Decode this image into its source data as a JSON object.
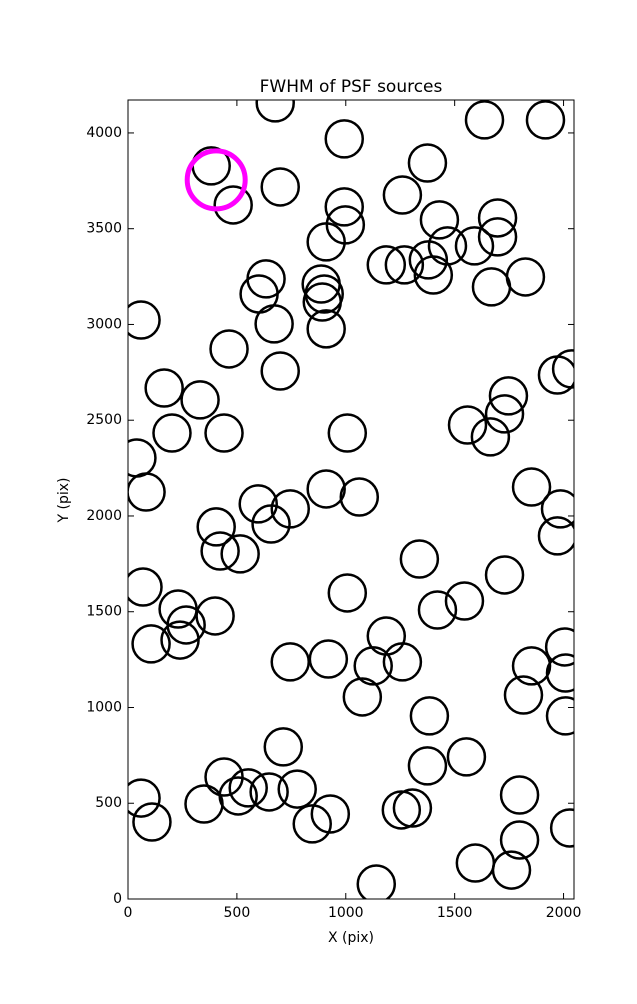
{
  "chart_data": {
    "type": "scatter",
    "title": "FWHM of PSF sources",
    "x_label": "X (pix)",
    "y_label": "Y (pix)",
    "xlim": [
      0,
      2048
    ],
    "ylim": [
      0,
      4172
    ],
    "xticks": [
      0,
      500,
      1000,
      1500,
      2000
    ],
    "yticks": [
      0,
      500,
      1000,
      1500,
      2000,
      2500,
      3000,
      3500,
      4000
    ],
    "grid": false,
    "series": [
      {
        "color": "#000000",
        "x": [
          676,
          1637,
          1917,
          993,
          382,
          1375,
          483,
          699,
          1260,
          993,
          998,
          1430,
          1697,
          1697,
          910,
          1467,
          1591,
          1379,
          1186,
          1269,
          1402,
          1825,
          634,
          602,
          887,
          901,
          892,
          1669,
          60,
          671,
          910,
          464,
          699,
          166,
          331,
          1972,
          2037,
          1747,
          1729,
          1559,
          1664,
          202,
          441,
          1007,
          41,
          83,
          910,
          1062,
          1853,
          598,
          745,
          657,
          405,
          423,
          515,
          1986,
          1972,
          1338,
          1729,
          69,
          1007,
          1545,
          1421,
          230,
          267,
          400,
          106,
          239,
          1186,
          2005,
          2009,
          745,
          920,
          1126,
          1260,
          1853,
          1076,
          1816,
          1384,
          2009,
          713,
          1554,
          1375,
          60,
          441,
          552,
          506,
          349,
          648,
          777,
          929,
          846,
          110,
          1798,
          1798,
          1255,
          1306,
          2028,
          1595,
          1761,
          1140
        ],
        "values": [
          4157,
          4068,
          4068,
          3969,
          3828,
          3843,
          3624,
          3718,
          3676,
          3614,
          3520,
          3546,
          3556,
          3457,
          3431,
          3410,
          3410,
          3337,
          3311,
          3311,
          3258,
          3248,
          3238,
          3159,
          3211,
          3159,
          3117,
          3196,
          3023,
          3003,
          2977,
          2872,
          2757,
          2668,
          2606,
          2736,
          2768,
          2627,
          2533,
          2475,
          2413,
          2433,
          2433,
          2433,
          2303,
          2125,
          2141,
          2099,
          2151,
          2063,
          2037,
          1958,
          1943,
          1817,
          1802,
          2037,
          1896,
          1775,
          1692,
          1629,
          1598,
          1556,
          1509,
          1514,
          1431,
          1478,
          1332,
          1352,
          1373,
          1316,
          1180,
          1238,
          1253,
          1217,
          1238,
          1217,
          1055,
          1065,
          956,
          956,
          794,
          742,
          695,
          527,
          637,
          580,
          538,
          496,
          559,
          574,
          444,
          392,
          402,
          543,
          308,
          465,
          475,
          371,
          188,
          151,
          78
        ]
      },
      {
        "color": "#ff00ff",
        "x": [
          405
        ],
        "values": [
          3755
        ]
      }
    ]
  }
}
